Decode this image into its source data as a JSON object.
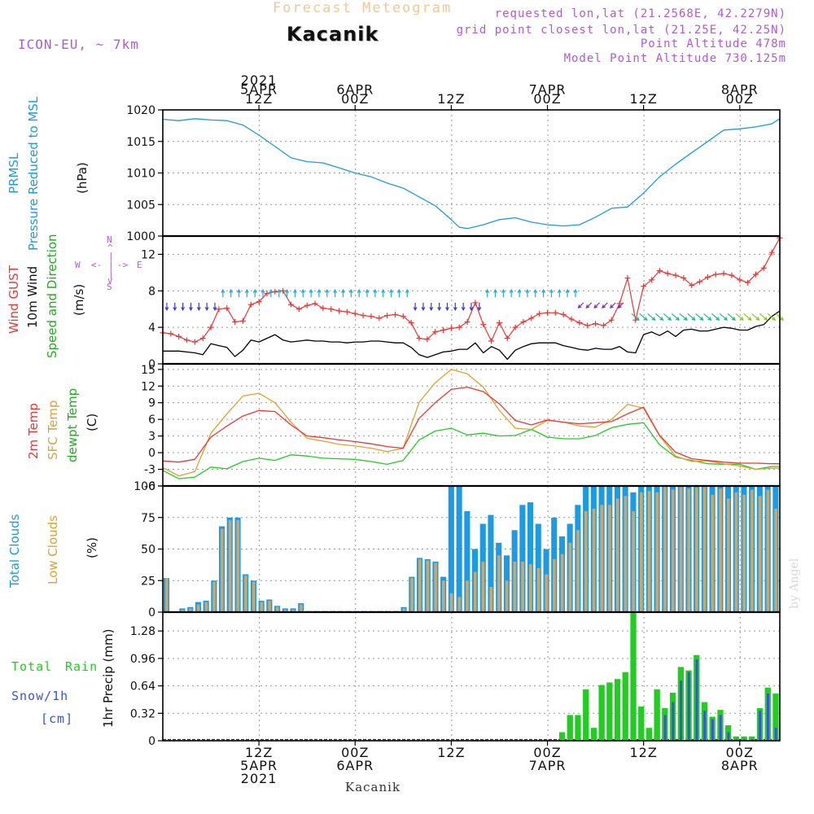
{
  "header": {
    "faded_title": "Forecast Meteogram",
    "location": "Kacanik",
    "model": "ICON-EU, ~ 7km",
    "requested": "requested lon,lat (21.2568E, 42.2279N)",
    "grid_point": "grid point closest lon,lat (21.25E, 42.25N)",
    "point_altitude": "Point Altitude 478m",
    "model_altitude": "Model Point Altitude 730.125m",
    "bottom_location": "Kacanik",
    "watermark": "by Angel"
  },
  "time_axis": {
    "top": [
      {
        "h": 12,
        "lines": [
          "2021",
          "5APR",
          "12Z"
        ]
      },
      {
        "h": 24,
        "lines": [
          "6APR",
          "00Z"
        ]
      },
      {
        "h": 36,
        "lines": [
          "12Z"
        ]
      },
      {
        "h": 48,
        "lines": [
          "7APR",
          "00Z"
        ]
      },
      {
        "h": 60,
        "lines": [
          "12Z"
        ]
      },
      {
        "h": 72,
        "lines": [
          "8APR",
          "00Z"
        ]
      }
    ],
    "bottom": [
      {
        "h": 12,
        "lines": [
          "12Z",
          "5APR",
          "2021"
        ]
      },
      {
        "h": 24,
        "lines": [
          "00Z",
          "6APR"
        ]
      },
      {
        "h": 36,
        "lines": [
          "12Z"
        ]
      },
      {
        "h": 48,
        "lines": [
          "00Z",
          "7APR"
        ]
      },
      {
        "h": 60,
        "lines": [
          "12Z"
        ]
      },
      {
        "h": 72,
        "lines": [
          "00Z",
          "8APR"
        ]
      }
    ]
  },
  "labels": {
    "prmsl": "PRMSL",
    "pressure_msl": "Pressure Reduced to MSL",
    "hpa": "(hPa)",
    "wind_gust": "Wind GUST",
    "wind_10m": "10m Wind",
    "wind_sd": "Speed and Direction",
    "ms": "(m/s)",
    "compass_n": "N",
    "compass_s": "S",
    "compass_w": "W",
    "compass_e": "E",
    "temp_2m": "2m Temp",
    "temp_sfc": "SFC Temp",
    "dewpt": "dewpt Temp",
    "c_unit": "(C)",
    "total_clouds": "Total Clouds",
    "low_clouds": "Low Clouds",
    "pct": "(%)",
    "total": "Total",
    "rain": "Rain",
    "snow": "Snow/1h",
    "cm": "[cm]",
    "precip": "1hr Precip (mm)"
  },
  "colors": {
    "pressure": "#1e9be0",
    "gust": "#ee3535",
    "wind": "#000000",
    "temp2m": "#ee3535",
    "sfc": "#e0a030",
    "dew": "#22cc22",
    "total_cloud": "#1e9be0",
    "low_cloud": "#c8a870",
    "rain": "#22cc22",
    "snow": "#3a50e0",
    "label_purple": "#b05ad6"
  },
  "chart_data": [
    {
      "type": "line",
      "title": "PRMSL Pressure Reduced to MSL",
      "ylabel": "hPa",
      "ylim": [
        1000,
        1020
      ],
      "yticks": [
        1000,
        1005,
        1010,
        1015,
        1020
      ],
      "x_hours": [
        0,
        2,
        4,
        6,
        8,
        10,
        12,
        14,
        16,
        18,
        20,
        22,
        24,
        26,
        28,
        30,
        32,
        34,
        36,
        37,
        38,
        40,
        42,
        44,
        46,
        48,
        50,
        52,
        54,
        56,
        58,
        60,
        62,
        64,
        66,
        68,
        70,
        72,
        74,
        76,
        77
      ],
      "series": [
        {
          "name": "Pressure",
          "values": [
            1018.5,
            1018.3,
            1018.6,
            1018.4,
            1018.3,
            1017.6,
            1016.0,
            1014.2,
            1012.4,
            1011.8,
            1011.6,
            1010.8,
            1010.0,
            1009.4,
            1008.4,
            1007.6,
            1006.2,
            1004.8,
            1002.6,
            1001.4,
            1001.2,
            1001.8,
            1002.6,
            1002.9,
            1002.2,
            1001.8,
            1001.6,
            1001.8,
            1003.0,
            1004.4,
            1004.6,
            1006.8,
            1009.4,
            1011.4,
            1013.2,
            1015.0,
            1016.8,
            1017.0,
            1017.3,
            1017.8,
            1018.6
          ]
        }
      ]
    },
    {
      "type": "line",
      "title": "Wind GUST / 10m Wind Speed and Direction",
      "ylabel": "m/s",
      "ylim": [
        0,
        14
      ],
      "yticks": [
        0,
        4,
        8,
        12
      ],
      "x_hours": [
        0,
        1,
        2,
        3,
        4,
        5,
        6,
        7,
        8,
        9,
        10,
        11,
        12,
        13,
        14,
        15,
        16,
        17,
        18,
        19,
        20,
        21,
        22,
        23,
        24,
        25,
        26,
        27,
        28,
        29,
        30,
        31,
        32,
        33,
        34,
        35,
        36,
        37,
        38,
        39,
        40,
        41,
        42,
        43,
        44,
        45,
        46,
        47,
        48,
        49,
        50,
        51,
        52,
        53,
        54,
        55,
        56,
        57,
        58,
        59,
        60,
        61,
        62,
        63,
        64,
        65,
        66,
        67,
        68,
        69,
        70,
        71,
        72,
        73,
        74,
        75,
        76,
        77
      ],
      "series": [
        {
          "name": "Wind GUST",
          "values": [
            3.4,
            3.3,
            3.0,
            2.6,
            2.4,
            2.8,
            4.0,
            6.0,
            6.1,
            4.6,
            4.7,
            6.5,
            6.8,
            7.7,
            7.9,
            8.0,
            6.5,
            6.0,
            6.4,
            6.6,
            6.1,
            6.0,
            5.8,
            5.7,
            5.5,
            5.3,
            5.2,
            5.0,
            5.3,
            5.4,
            5.2,
            4.5,
            2.8,
            2.7,
            3.5,
            3.7,
            3.9,
            4.0,
            4.6,
            6.7,
            4.3,
            2.5,
            4.5,
            2.8,
            4.0,
            4.6,
            5.0,
            5.5,
            5.6,
            5.6,
            5.4,
            4.9,
            4.5,
            4.2,
            4.4,
            4.2,
            4.8,
            6.6,
            9.4,
            4.8,
            8.5,
            9.2,
            10.2,
            9.9,
            9.7,
            9.4,
            8.6,
            9.0,
            9.5,
            9.8,
            9.9,
            9.7,
            9.2,
            8.9,
            9.8,
            10.5,
            12.2,
            13.8
          ]
        },
        {
          "name": "10m Wind",
          "values": [
            1.4,
            1.4,
            1.4,
            1.3,
            1.2,
            1.0,
            2.2,
            2.0,
            1.8,
            0.8,
            1.5,
            2.6,
            2.4,
            2.8,
            3.2,
            2.6,
            2.4,
            2.5,
            2.6,
            2.5,
            2.5,
            2.4,
            2.4,
            2.3,
            2.4,
            2.4,
            2.5,
            2.5,
            2.4,
            2.3,
            2.3,
            1.8,
            1.0,
            0.7,
            1.0,
            1.3,
            1.4,
            1.6,
            1.6,
            2.3,
            1.2,
            1.9,
            1.5,
            0.5,
            1.5,
            1.9,
            2.2,
            2.3,
            2.3,
            2.3,
            2.0,
            1.8,
            1.6,
            1.5,
            1.7,
            1.6,
            1.6,
            1.9,
            1.3,
            1.2,
            3.2,
            3.5,
            3.1,
            3.6,
            3.0,
            3.7,
            3.8,
            3.6,
            3.6,
            3.8,
            4.0,
            3.9,
            3.7,
            3.7,
            4.1,
            4.3,
            5.2,
            5.8
          ]
        }
      ],
      "wind_direction_toward": [
        {
          "from_h": 0,
          "to_h": 7,
          "dir": "S"
        },
        {
          "from_h": 7,
          "to_h": 31,
          "dir": "N"
        },
        {
          "from_h": 31,
          "to_h": 40,
          "dir": "S"
        },
        {
          "from_h": 40,
          "to_h": 52,
          "dir": "N"
        },
        {
          "from_h": 52,
          "to_h": 58,
          "dir": "SW"
        },
        {
          "from_h": 58,
          "to_h": 77,
          "dir": "SE"
        }
      ]
    },
    {
      "type": "line",
      "title": "2m Temp / SFC Temp / dewpt Temp",
      "ylabel": "C",
      "ylim": [
        -6,
        16
      ],
      "yticks": [
        -6,
        -3,
        0,
        3,
        6,
        9,
        12,
        15
      ],
      "x_hours": [
        0,
        2,
        4,
        6,
        8,
        10,
        12,
        14,
        16,
        18,
        20,
        22,
        24,
        26,
        28,
        30,
        32,
        34,
        36,
        38,
        40,
        42,
        44,
        46,
        48,
        50,
        52,
        54,
        56,
        58,
        60,
        62,
        64,
        66,
        68,
        70,
        72,
        74,
        76,
        77
      ],
      "series": [
        {
          "name": "2m Temp",
          "values": [
            -1.5,
            -1.7,
            -1.2,
            2.8,
            4.8,
            6.6,
            7.6,
            7.4,
            5.0,
            3.0,
            2.7,
            2.3,
            2.0,
            1.6,
            1.1,
            0.8,
            6.2,
            9.0,
            11.4,
            11.8,
            11.0,
            8.8,
            5.8,
            5.0,
            5.9,
            5.5,
            5.2,
            5.4,
            5.6,
            7.0,
            8.2,
            3.1,
            0.1,
            -1.1,
            -1.4,
            -1.7,
            -1.9,
            -1.9,
            -2.0,
            -2.0
          ]
        },
        {
          "name": "SFC Temp",
          "values": [
            -2.7,
            -4.2,
            -3.4,
            3.5,
            7.0,
            10.2,
            10.7,
            9.0,
            5.5,
            2.6,
            2.1,
            1.5,
            1.2,
            0.8,
            0.2,
            0.8,
            9.1,
            12.6,
            15.0,
            14.2,
            11.8,
            7.6,
            4.4,
            4.2,
            5.8,
            5.5,
            4.8,
            4.6,
            6.0,
            8.7,
            8.0,
            3.0,
            -0.6,
            -1.6,
            -1.5,
            -2.0,
            -2.4,
            -3.0,
            -2.8,
            -2.8
          ]
        },
        {
          "name": "dewpt Temp",
          "values": [
            -3.2,
            -4.7,
            -4.4,
            -2.6,
            -2.9,
            -1.6,
            -1.0,
            -1.4,
            -0.4,
            -0.6,
            -1.0,
            -1.1,
            -1.2,
            -1.6,
            -2.1,
            -1.4,
            2.3,
            3.9,
            4.4,
            3.2,
            3.5,
            3.0,
            3.1,
            4.2,
            2.8,
            2.5,
            2.5,
            3.1,
            4.5,
            5.1,
            5.4,
            1.4,
            -0.8,
            -1.4,
            -2.0,
            -2.1,
            -2.1,
            -3.0,
            -2.5,
            -2.5
          ]
        }
      ]
    },
    {
      "type": "bar",
      "title": "Total Clouds / Low Clouds",
      "ylabel": "%",
      "ylim": [
        0,
        100
      ],
      "yticks": [
        0,
        25,
        50,
        75,
        100
      ],
      "series": [
        {
          "name": "Total Clouds",
          "values": [
            27,
            0,
            3,
            4,
            8,
            9,
            25,
            68,
            75,
            75,
            30,
            25,
            9,
            10,
            5,
            3,
            3,
            7,
            1,
            1,
            1,
            1,
            1,
            1,
            1,
            1,
            1,
            1,
            1,
            1,
            4,
            28,
            43,
            42,
            40,
            28,
            100,
            100,
            80,
            50,
            70,
            77,
            55,
            45,
            65,
            85,
            87,
            70,
            50,
            75,
            60,
            70,
            85,
            100,
            100,
            100,
            100,
            100,
            100,
            95,
            100,
            100,
            100,
            100,
            100,
            100,
            100,
            100,
            100,
            100,
            100,
            100,
            100,
            100,
            100,
            100,
            100,
            100
          ]
        },
        {
          "name": "Low Clouds",
          "values": [
            27,
            0,
            2,
            3,
            6,
            8,
            24,
            66,
            73,
            73,
            29,
            24,
            8,
            9,
            4,
            2,
            2,
            6,
            1,
            1,
            1,
            1,
            1,
            1,
            1,
            1,
            1,
            1,
            1,
            1,
            3,
            27,
            42,
            41,
            39,
            25,
            15,
            12,
            25,
            32,
            40,
            20,
            45,
            25,
            40,
            40,
            38,
            35,
            30,
            42,
            46,
            55,
            65,
            80,
            82,
            85,
            85,
            90,
            92,
            80,
            95,
            96,
            95,
            100,
            97,
            100,
            98,
            99,
            100,
            93,
            98,
            90,
            95,
            93,
            97,
            92,
            97,
            82
          ]
        }
      ]
    },
    {
      "type": "bar",
      "title": "Total Rain / Snow 1h",
      "ylabel": "1hr Precip (mm)",
      "ylim": [
        0,
        1.5
      ],
      "yticks": [
        0,
        0.32,
        0.64,
        0.96,
        1.28
      ],
      "series": [
        {
          "name": "Total Rain",
          "values": [
            0,
            0,
            0,
            0,
            0,
            0,
            0,
            0,
            0,
            0,
            0,
            0,
            0,
            0,
            0,
            0,
            0,
            0,
            0,
            0,
            0,
            0,
            0,
            0,
            0,
            0,
            0,
            0,
            0,
            0,
            0,
            0,
            0,
            0,
            0,
            0,
            0,
            0,
            0,
            0.01,
            0.01,
            0,
            0,
            0,
            0,
            0,
            0,
            0,
            0,
            0,
            0.1,
            0.3,
            0.3,
            0.6,
            0.15,
            0.65,
            0.68,
            0.72,
            0.8,
            1.49,
            0.4,
            0.15,
            0.6,
            0.38,
            0.56,
            0.86,
            0.82,
            1.0,
            0.45,
            0.28,
            0.36,
            0.18,
            0.05,
            0.05,
            0.05,
            0.38,
            0.62,
            0.55
          ]
        },
        {
          "name": "Snow/1h",
          "values": [
            0,
            0,
            0,
            0,
            0,
            0,
            0,
            0,
            0,
            0,
            0,
            0,
            0,
            0,
            0,
            0,
            0,
            0,
            0,
            0,
            0,
            0,
            0,
            0,
            0,
            0,
            0,
            0,
            0,
            0,
            0,
            0,
            0,
            0,
            0,
            0,
            0,
            0,
            0,
            0,
            0,
            0,
            0,
            0,
            0,
            0,
            0,
            0,
            0,
            0,
            0,
            0,
            0,
            0,
            0,
            0,
            0,
            0,
            0,
            0,
            0,
            0,
            0,
            0.3,
            0.45,
            0.7,
            0.8,
            0.95,
            0.35,
            0.25,
            0.3,
            0.1,
            0.02,
            0.02,
            0.02,
            0.35,
            0.55,
            0.15
          ]
        }
      ]
    }
  ]
}
